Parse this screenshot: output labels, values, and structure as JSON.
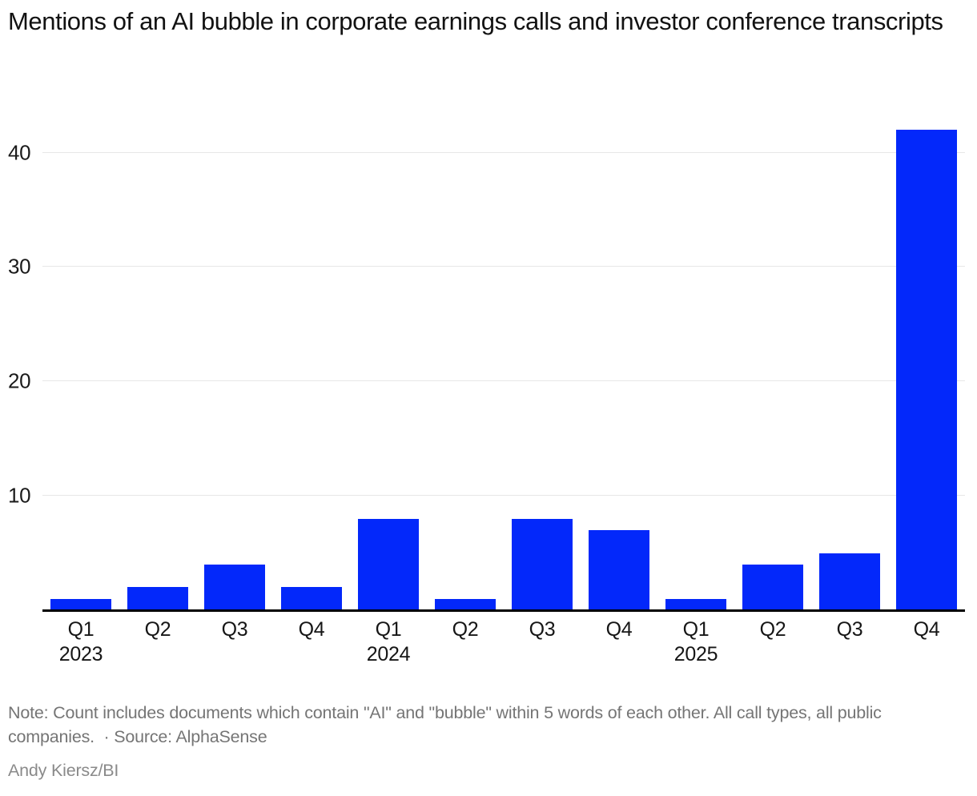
{
  "title": "Mentions of an AI bubble in corporate earnings calls and investor conference transcripts",
  "chart_data": {
    "type": "bar",
    "title": "Mentions of an AI bubble in corporate earnings calls and investor conference transcripts",
    "categories": [
      "Q1 2023",
      "Q2 2023",
      "Q3 2023",
      "Q4 2023",
      "Q1 2024",
      "Q2 2024",
      "Q3 2024",
      "Q4 2024",
      "Q1 2025",
      "Q2 2025",
      "Q3 2025",
      "Q4 2025"
    ],
    "values": [
      1,
      2,
      4,
      2,
      8,
      1,
      8,
      7,
      1,
      4,
      5,
      42
    ],
    "x_tick_labels": [
      {
        "quarter": "Q1",
        "year": "2023"
      },
      {
        "quarter": "Q2",
        "year": ""
      },
      {
        "quarter": "Q3",
        "year": ""
      },
      {
        "quarter": "Q4",
        "year": ""
      },
      {
        "quarter": "Q1",
        "year": "2024"
      },
      {
        "quarter": "Q2",
        "year": ""
      },
      {
        "quarter": "Q3",
        "year": ""
      },
      {
        "quarter": "Q4",
        "year": ""
      },
      {
        "quarter": "Q1",
        "year": "2025"
      },
      {
        "quarter": "Q2",
        "year": ""
      },
      {
        "quarter": "Q3",
        "year": ""
      },
      {
        "quarter": "Q4",
        "year": ""
      }
    ],
    "xlabel": "",
    "ylabel": "",
    "ylim": [
      0,
      42
    ],
    "yticks": [
      10,
      20,
      30,
      40
    ],
    "grid": "horizontal",
    "legend": "none"
  },
  "colors": {
    "bar": "#0328fa",
    "gridline": "#e7e7e7",
    "axis_line": "#000000",
    "title_text": "#121212",
    "tick_text": "#1a1a1a",
    "note_text": "#757575",
    "credit_text": "#8a8a8a"
  },
  "footnote": {
    "text": "Note: Count includes documents which contain \"AI\" and \"bubble\" within 5 words of each other. All call types, all public companies.  · Source: AlphaSense"
  },
  "credit": "Andy Kiersz/BI"
}
